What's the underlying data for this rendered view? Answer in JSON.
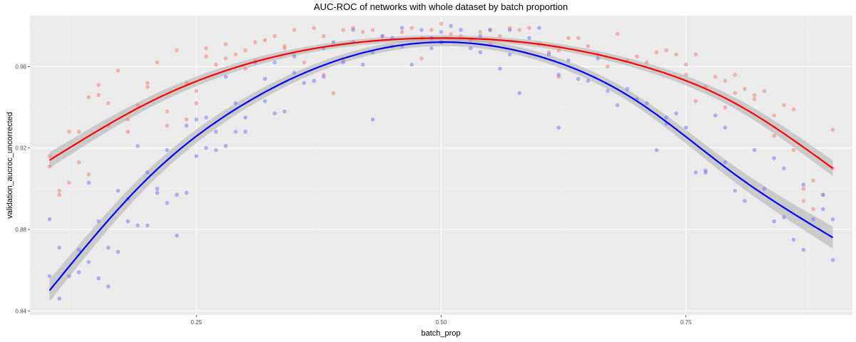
{
  "chart_data": {
    "type": "scatter",
    "title": "AUC-ROC of networks with whole dataset by batch proportion",
    "xlabel": "batch_prop",
    "ylabel": "validation_aucroc_uncorrected",
    "xlim": [
      0.08,
      0.92
    ],
    "ylim": [
      0.838,
      0.985
    ],
    "xticks": [
      0.25,
      0.5,
      0.75
    ],
    "xtick_labels": [
      "0.25",
      "0.50",
      "0.75"
    ],
    "yticks": [
      0.84,
      0.88,
      0.92,
      0.96
    ],
    "ytick_labels": [
      "0.84",
      "0.88",
      "0.92",
      "0.96"
    ],
    "grid": true,
    "legend": "none",
    "series": [
      {
        "color": "#ff0000",
        "point_color": "#f8766d",
        "fit": "quadratic smooth with confidence band",
        "fit_curve": {
          "x": [
            0.1,
            0.2,
            0.3,
            0.4,
            0.5,
            0.6,
            0.7,
            0.8,
            0.9
          ],
          "y": [
            0.914,
            0.942,
            0.961,
            0.971,
            0.974,
            0.971,
            0.961,
            0.942,
            0.91
          ]
        },
        "band_halfwidth": 0.0025,
        "points": [
          [
            0.1,
            0.916
          ],
          [
            0.1,
            0.911
          ],
          [
            0.11,
            0.899
          ],
          [
            0.11,
            0.897
          ],
          [
            0.12,
            0.928
          ],
          [
            0.12,
            0.903
          ],
          [
            0.13,
            0.928
          ],
          [
            0.13,
            0.913
          ],
          [
            0.14,
            0.907
          ],
          [
            0.14,
            0.945
          ],
          [
            0.15,
            0.946
          ],
          [
            0.15,
            0.951
          ],
          [
            0.16,
            0.942
          ],
          [
            0.16,
            0.931
          ],
          [
            0.17,
            0.958
          ],
          [
            0.18,
            0.934
          ],
          [
            0.18,
            0.928
          ],
          [
            0.19,
            0.941
          ],
          [
            0.2,
            0.952
          ],
          [
            0.2,
            0.95
          ],
          [
            0.21,
            0.962
          ],
          [
            0.22,
            0.938
          ],
          [
            0.22,
            0.931
          ],
          [
            0.23,
            0.968
          ],
          [
            0.24,
            0.952
          ],
          [
            0.24,
            0.934
          ],
          [
            0.25,
            0.948
          ],
          [
            0.25,
            0.942
          ],
          [
            0.26,
            0.965
          ],
          [
            0.26,
            0.969
          ],
          [
            0.27,
            0.961
          ],
          [
            0.28,
            0.971
          ],
          [
            0.28,
            0.964
          ],
          [
            0.29,
            0.966
          ],
          [
            0.3,
            0.968
          ],
          [
            0.3,
            0.959
          ],
          [
            0.31,
            0.972
          ],
          [
            0.31,
            0.963
          ],
          [
            0.32,
            0.973
          ],
          [
            0.33,
            0.975
          ],
          [
            0.34,
            0.97
          ],
          [
            0.34,
            0.969
          ],
          [
            0.35,
            0.978
          ],
          [
            0.36,
            0.962
          ],
          [
            0.37,
            0.979
          ],
          [
            0.38,
            0.975
          ],
          [
            0.38,
            0.956
          ],
          [
            0.39,
            0.947
          ],
          [
            0.4,
            0.978
          ],
          [
            0.4,
            0.963
          ],
          [
            0.41,
            0.979
          ],
          [
            0.42,
            0.977
          ],
          [
            0.43,
            0.978
          ],
          [
            0.44,
            0.975
          ],
          [
            0.45,
            0.97
          ],
          [
            0.46,
            0.977
          ],
          [
            0.47,
            0.979
          ],
          [
            0.48,
            0.974
          ],
          [
            0.48,
            0.964
          ],
          [
            0.49,
            0.978
          ],
          [
            0.5,
            0.981
          ],
          [
            0.5,
            0.972
          ],
          [
            0.51,
            0.976
          ],
          [
            0.52,
            0.975
          ],
          [
            0.53,
            0.973
          ],
          [
            0.54,
            0.977
          ],
          [
            0.55,
            0.978
          ],
          [
            0.55,
            0.971
          ],
          [
            0.56,
            0.975
          ],
          [
            0.57,
            0.979
          ],
          [
            0.58,
            0.978
          ],
          [
            0.59,
            0.979
          ],
          [
            0.6,
            0.971
          ],
          [
            0.61,
            0.967
          ],
          [
            0.62,
            0.955
          ],
          [
            0.62,
            0.968
          ],
          [
            0.63,
            0.974
          ],
          [
            0.64,
            0.974
          ],
          [
            0.65,
            0.97
          ],
          [
            0.66,
            0.966
          ],
          [
            0.67,
            0.96
          ],
          [
            0.68,
            0.976
          ],
          [
            0.69,
            0.963
          ],
          [
            0.7,
            0.965
          ],
          [
            0.71,
            0.962
          ],
          [
            0.72,
            0.967
          ],
          [
            0.73,
            0.968
          ],
          [
            0.74,
            0.966
          ],
          [
            0.75,
            0.961
          ],
          [
            0.75,
            0.956
          ],
          [
            0.76,
            0.943
          ],
          [
            0.76,
            0.966
          ],
          [
            0.77,
            0.95
          ],
          [
            0.78,
            0.955
          ],
          [
            0.79,
            0.94
          ],
          [
            0.79,
            0.953
          ],
          [
            0.8,
            0.956
          ],
          [
            0.8,
            0.947
          ],
          [
            0.81,
            0.949
          ],
          [
            0.82,
            0.946
          ],
          [
            0.82,
            0.944
          ],
          [
            0.83,
            0.948
          ],
          [
            0.84,
            0.936
          ],
          [
            0.84,
            0.926
          ],
          [
            0.85,
            0.941
          ],
          [
            0.86,
            0.939
          ],
          [
            0.86,
            0.919
          ],
          [
            0.87,
            0.9
          ],
          [
            0.87,
            0.894
          ],
          [
            0.88,
            0.904
          ],
          [
            0.88,
            0.89
          ],
          [
            0.89,
            0.897
          ],
          [
            0.9,
            0.929
          ],
          [
            0.9,
            0.91
          ]
        ]
      },
      {
        "color": "#0000ff",
        "point_color": "#6f6fff",
        "fit": "quadratic smooth with confidence band",
        "fit_curve": {
          "x": [
            0.1,
            0.2,
            0.3,
            0.4,
            0.5,
            0.6,
            0.7,
            0.8,
            0.9
          ],
          "y": [
            0.85,
            0.905,
            0.942,
            0.964,
            0.972,
            0.965,
            0.943,
            0.907,
            0.876
          ]
        },
        "band_halfwidth": 0.0035,
        "points": [
          [
            0.1,
            0.885
          ],
          [
            0.1,
            0.857
          ],
          [
            0.11,
            0.871
          ],
          [
            0.11,
            0.846
          ],
          [
            0.12,
            0.857
          ],
          [
            0.13,
            0.87
          ],
          [
            0.13,
            0.859
          ],
          [
            0.14,
            0.864
          ],
          [
            0.14,
            0.903
          ],
          [
            0.15,
            0.884
          ],
          [
            0.15,
            0.856
          ],
          [
            0.16,
            0.852
          ],
          [
            0.16,
            0.871
          ],
          [
            0.17,
            0.869
          ],
          [
            0.17,
            0.899
          ],
          [
            0.18,
            0.895
          ],
          [
            0.18,
            0.884
          ],
          [
            0.19,
            0.921
          ],
          [
            0.19,
            0.882
          ],
          [
            0.2,
            0.908
          ],
          [
            0.2,
            0.882
          ],
          [
            0.21,
            0.9
          ],
          [
            0.21,
            0.898
          ],
          [
            0.22,
            0.919
          ],
          [
            0.22,
            0.893
          ],
          [
            0.23,
            0.877
          ],
          [
            0.23,
            0.897
          ],
          [
            0.24,
            0.898
          ],
          [
            0.24,
            0.931
          ],
          [
            0.25,
            0.934
          ],
          [
            0.25,
            0.916
          ],
          [
            0.26,
            0.92
          ],
          [
            0.26,
            0.935
          ],
          [
            0.27,
            0.928
          ],
          [
            0.27,
            0.919
          ],
          [
            0.28,
            0.921
          ],
          [
            0.28,
            0.955
          ],
          [
            0.29,
            0.942
          ],
          [
            0.29,
            0.928
          ],
          [
            0.3,
            0.928
          ],
          [
            0.3,
            0.935
          ],
          [
            0.31,
            0.962
          ],
          [
            0.32,
            0.954
          ],
          [
            0.32,
            0.943
          ],
          [
            0.33,
            0.962
          ],
          [
            0.33,
            0.937
          ],
          [
            0.34,
            0.938
          ],
          [
            0.35,
            0.957
          ],
          [
            0.35,
            0.965
          ],
          [
            0.36,
            0.952
          ],
          [
            0.37,
            0.953
          ],
          [
            0.38,
            0.969
          ],
          [
            0.38,
            0.955
          ],
          [
            0.39,
            0.972
          ],
          [
            0.4,
            0.962
          ],
          [
            0.41,
            0.978
          ],
          [
            0.41,
            0.972
          ],
          [
            0.42,
            0.961
          ],
          [
            0.43,
            0.934
          ],
          [
            0.43,
            0.967
          ],
          [
            0.44,
            0.975
          ],
          [
            0.45,
            0.974
          ],
          [
            0.46,
            0.979
          ],
          [
            0.46,
            0.97
          ],
          [
            0.47,
            0.961
          ],
          [
            0.48,
            0.978
          ],
          [
            0.49,
            0.974
          ],
          [
            0.49,
            0.969
          ],
          [
            0.5,
            0.977
          ],
          [
            0.5,
            0.972
          ],
          [
            0.51,
            0.98
          ],
          [
            0.52,
            0.978
          ],
          [
            0.53,
            0.969
          ],
          [
            0.54,
            0.975
          ],
          [
            0.54,
            0.967
          ],
          [
            0.55,
            0.978
          ],
          [
            0.56,
            0.959
          ],
          [
            0.57,
            0.978
          ],
          [
            0.57,
            0.966
          ],
          [
            0.58,
            0.947
          ],
          [
            0.59,
            0.974
          ],
          [
            0.6,
            0.979
          ],
          [
            0.61,
            0.966
          ],
          [
            0.62,
            0.93
          ],
          [
            0.62,
            0.956
          ],
          [
            0.63,
            0.963
          ],
          [
            0.64,
            0.954
          ],
          [
            0.65,
            0.953
          ],
          [
            0.66,
            0.964
          ],
          [
            0.67,
            0.948
          ],
          [
            0.68,
            0.941
          ],
          [
            0.69,
            0.949
          ],
          [
            0.7,
            0.944
          ],
          [
            0.71,
            0.942
          ],
          [
            0.72,
            0.919
          ],
          [
            0.73,
            0.935
          ],
          [
            0.73,
            0.932
          ],
          [
            0.74,
            0.937
          ],
          [
            0.75,
            0.93
          ],
          [
            0.76,
            0.908
          ],
          [
            0.77,
            0.909
          ],
          [
            0.77,
            0.908
          ],
          [
            0.78,
            0.936
          ],
          [
            0.79,
            0.913
          ],
          [
            0.79,
            0.93
          ],
          [
            0.8,
            0.899
          ],
          [
            0.81,
            0.894
          ],
          [
            0.82,
            0.919
          ],
          [
            0.83,
            0.9
          ],
          [
            0.84,
            0.884
          ],
          [
            0.84,
            0.915
          ],
          [
            0.85,
            0.886
          ],
          [
            0.85,
            0.91
          ],
          [
            0.86,
            0.875
          ],
          [
            0.87,
            0.902
          ],
          [
            0.87,
            0.87
          ],
          [
            0.88,
            0.885
          ],
          [
            0.89,
            0.897
          ],
          [
            0.89,
            0.89
          ],
          [
            0.9,
            0.885
          ],
          [
            0.9,
            0.865
          ]
        ]
      }
    ]
  }
}
